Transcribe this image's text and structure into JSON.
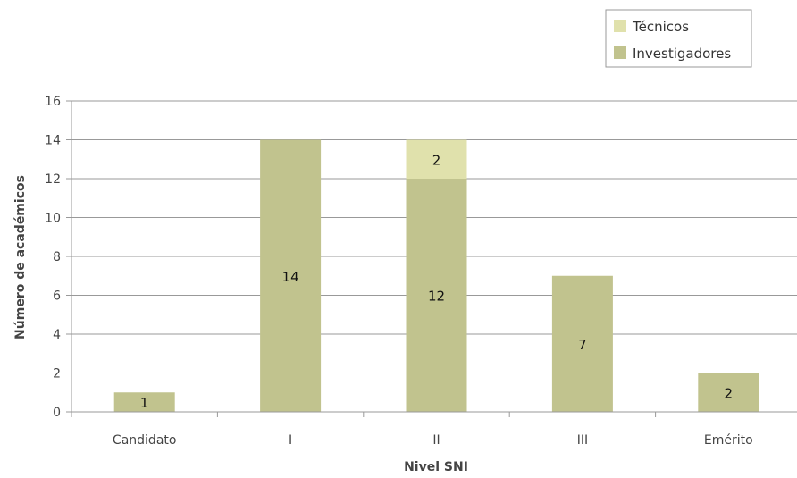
{
  "chart_data": {
    "type": "bar",
    "stacked": true,
    "categories": [
      "Candidato",
      "I",
      "II",
      "III",
      "Emérito"
    ],
    "series": [
      {
        "name": "Investigadores",
        "values": [
          1,
          14,
          12,
          7,
          2
        ],
        "color": "#c1c38e"
      },
      {
        "name": "Técnicos",
        "values": [
          0,
          0,
          2,
          0,
          0
        ],
        "color": "#e0e1ac"
      }
    ],
    "data_labels": {
      "Investigadores": [
        "1",
        "14",
        "12",
        "7",
        "2"
      ],
      "Técnicos": [
        "",
        "",
        "2",
        "",
        ""
      ]
    },
    "xlabel": "Nivel SNI",
    "ylabel": "Número de académicos",
    "ylim": [
      0,
      16
    ],
    "yticks": [
      0,
      2,
      4,
      6,
      8,
      10,
      12,
      14,
      16
    ],
    "grid": true,
    "legend_position": "top-right",
    "legend_order": [
      "Técnicos",
      "Investigadores"
    ],
    "axis_color": "#999999",
    "grid_color": "#999999"
  }
}
